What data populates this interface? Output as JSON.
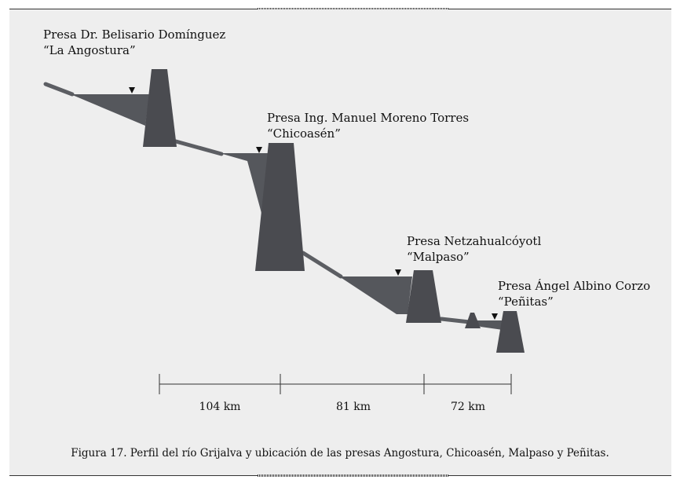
{
  "dams": [
    {
      "name": "Presa Dr. Belisario Domínguez",
      "alias": "“La Angostura”"
    },
    {
      "name": "Presa Ing. Manuel Moreno Torres",
      "alias": "“Chicoasén”"
    },
    {
      "name": "Presa Netzahualcóyotl",
      "alias": "“Malpaso”"
    },
    {
      "name": "Presa Ángel Albino Corzo",
      "alias": "“Peñitas”"
    }
  ],
  "distances": [
    "104 km",
    "81 km",
    "72 km"
  ],
  "caption": "Figura 17. Perfil del río Grijalva y ubicación de las presas Angostura, Chicoasén, Malpaso y Peñitas.",
  "colors": {
    "panel": "#eeeeee",
    "dam": "#4a4b50",
    "reservoir": "#55575c",
    "river": "#5c5e63"
  }
}
